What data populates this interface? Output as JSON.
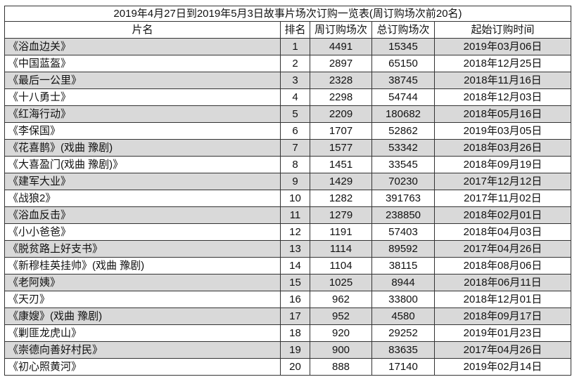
{
  "table": {
    "title": "2019年4月27日到2019年5月3日故事片场次订购一览表(周订购场次前20名)",
    "columns": [
      "片名",
      "排名",
      "周订购场次",
      "总订购场次",
      "起始订购时间"
    ],
    "rows": [
      [
        "《浴血边关》",
        1,
        4491,
        15345,
        "2019年03月06日"
      ],
      [
        "《中国蓝盔》",
        2,
        2897,
        65150,
        "2018年12月25日"
      ],
      [
        "《最后一公里》",
        3,
        2328,
        38745,
        "2018年11月16日"
      ],
      [
        "《十八勇士》",
        4,
        2298,
        54744,
        "2018年12月03日"
      ],
      [
        "《红海行动》",
        5,
        2209,
        180682,
        "2018年05月16日"
      ],
      [
        "《李保国》",
        6,
        1707,
        52862,
        "2019年03月05日"
      ],
      [
        "《花喜鹊》(戏曲 豫剧)",
        7,
        1577,
        53342,
        "2018年03月26日"
      ],
      [
        "《大喜盈门(戏曲 豫剧)》",
        8,
        1451,
        33545,
        "2018年09月19日"
      ],
      [
        "《建军大业》",
        9,
        1429,
        70230,
        "2017年12月12日"
      ],
      [
        "《战狼2》",
        10,
        1282,
        391763,
        "2017年11月02日"
      ],
      [
        "《浴血反击》",
        11,
        1279,
        238850,
        "2018年02月01日"
      ],
      [
        "《小小爸爸》",
        12,
        1191,
        57403,
        "2018年04月03日"
      ],
      [
        "《脱贫路上好支书》",
        13,
        1114,
        89592,
        "2017年04月26日"
      ],
      [
        "《新穆桂英挂帅》(戏曲 豫剧)",
        14,
        1104,
        38115,
        "2018年08月06日"
      ],
      [
        "《老阿姨》",
        15,
        1025,
        8944,
        "2018年06月11日"
      ],
      [
        "《天刃》",
        16,
        962,
        33800,
        "2018年12月01日"
      ],
      [
        "《康嫂》(戏曲 豫剧)",
        17,
        952,
        4580,
        "2018年09月17日"
      ],
      [
        "《剿匪龙虎山》",
        18,
        920,
        29252,
        "2019年01月23日"
      ],
      [
        "《崇德向善好村民》",
        19,
        900,
        83635,
        "2017年04月26日"
      ],
      [
        "《初心照黄河》",
        20,
        888,
        17140,
        "2019年02月14日"
      ]
    ]
  }
}
